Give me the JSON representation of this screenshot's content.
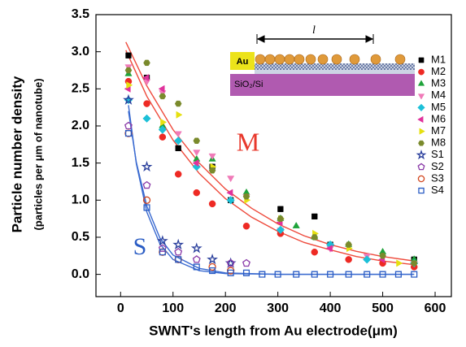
{
  "chart_data": {
    "type": "scatter",
    "ylabel": "Particle number density",
    "ylabel2": "(particles per μm of nanotube)",
    "xlabel": "SWNT's length from Au electrode(μm)",
    "xlim": [
      -47,
      631
    ],
    "ylim": [
      -0.3,
      3.5
    ],
    "xticks": [
      0,
      100,
      200,
      300,
      400,
      500,
      600
    ],
    "yticks": [
      {
        "value": 0,
        "label": "0.0"
      },
      0.5,
      {
        "value": 1,
        "label": "1.0"
      },
      1.5,
      {
        "value": 2,
        "label": "2.0"
      },
      2.5,
      {
        "value": 3,
        "label": "3.0"
      },
      3.5
    ],
    "annotations": [
      {
        "text": "M",
        "color": "#e8382c"
      },
      {
        "text": "S",
        "color": "#2a5cc4"
      }
    ],
    "inset": {
      "electrode": "Au",
      "substrate": "SiO₂/Si",
      "length": "l"
    },
    "series": [
      {
        "name": "M1",
        "color": "#000000",
        "marker": "square",
        "filled": true,
        "x": [
          15,
          50,
          110,
          175,
          210,
          305,
          370,
          400,
          560
        ],
        "values": [
          2.95,
          2.65,
          1.7,
          1.45,
          1.0,
          0.88,
          0.78,
          0.4,
          0.2
        ]
      },
      {
        "name": "M2",
        "color": "#ee2a24",
        "marker": "circle",
        "filled": true,
        "x": [
          15,
          50,
          80,
          110,
          145,
          175,
          240,
          305,
          370,
          435,
          500,
          560
        ],
        "values": [
          2.6,
          2.3,
          1.85,
          1.35,
          1.1,
          0.95,
          0.65,
          0.55,
          0.3,
          0.2,
          0.15,
          0.1
        ]
      },
      {
        "name": "M3",
        "color": "#1fa33a",
        "marker": "tri-up",
        "filled": true,
        "x": [
          15,
          80,
          145,
          175,
          240,
          305,
          335,
          370,
          435,
          500,
          560
        ],
        "values": [
          2.7,
          2.0,
          1.55,
          1.55,
          1.1,
          0.75,
          0.65,
          0.5,
          0.4,
          0.3,
          0.2
        ]
      },
      {
        "name": "M4",
        "color": "#f07ab8",
        "marker": "tri-down",
        "filled": true,
        "x": [
          15,
          50,
          80,
          110,
          145,
          175,
          210,
          240,
          305,
          400,
          470,
          560
        ],
        "values": [
          2.8,
          2.6,
          2.45,
          1.9,
          1.65,
          1.6,
          1.3,
          1.05,
          0.6,
          0.35,
          0.25,
          0.15
        ]
      },
      {
        "name": "M5",
        "color": "#1cc0d8",
        "marker": "diamond",
        "filled": true,
        "x": [
          15,
          50,
          80,
          110,
          145,
          210,
          305,
          400,
          470,
          560
        ],
        "values": [
          2.35,
          2.1,
          1.95,
          1.8,
          1.45,
          1.0,
          0.6,
          0.4,
          0.2,
          0.15
        ]
      },
      {
        "name": "M6",
        "color": "#e0329c",
        "marker": "tri-left",
        "filled": true,
        "x": [
          15,
          50,
          80,
          145,
          210,
          305,
          400,
          500
        ],
        "values": [
          2.5,
          2.65,
          2.5,
          1.5,
          1.1,
          0.7,
          0.35,
          0.2
        ]
      },
      {
        "name": "M7",
        "color": "#e6e010",
        "marker": "tri-right",
        "filled": true,
        "x": [
          15,
          80,
          110,
          175,
          240,
          305,
          370,
          435,
          530
        ],
        "values": [
          2.55,
          2.05,
          2.15,
          1.45,
          1.0,
          0.75,
          0.55,
          0.35,
          0.15
        ]
      },
      {
        "name": "M8",
        "color": "#7a8a2c",
        "marker": "hexagon",
        "filled": true,
        "x": [
          15,
          50,
          80,
          110,
          145,
          175,
          240,
          305,
          370,
          435,
          500,
          560
        ],
        "values": [
          2.75,
          2.85,
          2.4,
          2.3,
          1.8,
          1.4,
          1.05,
          0.75,
          0.5,
          0.4,
          0.25,
          0.15
        ]
      },
      {
        "name": "S1",
        "color": "#2a3f9c",
        "marker": "star",
        "filled": false,
        "x": [
          15,
          50,
          80,
          110,
          145,
          175,
          210
        ],
        "values": [
          2.35,
          1.45,
          0.45,
          0.4,
          0.35,
          0.2,
          0.15
        ]
      },
      {
        "name": "S2",
        "color": "#8a3aa8",
        "marker": "pentagon",
        "filled": false,
        "x": [
          15,
          50,
          80,
          110,
          145,
          210,
          240
        ],
        "values": [
          2.0,
          1.2,
          0.35,
          0.3,
          0.2,
          0.15,
          0.15
        ]
      },
      {
        "name": "S3",
        "color": "#d2461e",
        "marker": "circle",
        "filled": false,
        "x": [
          15,
          50,
          80,
          110,
          175,
          210
        ],
        "values": [
          1.9,
          1.0,
          0.3,
          0.2,
          0.1,
          0.05
        ]
      },
      {
        "name": "S4",
        "color": "#2a5cc4",
        "marker": "square",
        "filled": false,
        "x": [
          15,
          50,
          80,
          110,
          145,
          175,
          210,
          240,
          270,
          300,
          335,
          370,
          400,
          435,
          470,
          500,
          530,
          560
        ],
        "values": [
          1.9,
          0.9,
          0.3,
          0.2,
          0.1,
          0.05,
          0.02,
          0.02,
          0,
          0,
          0,
          0,
          0,
          0,
          0,
          0,
          0,
          0
        ]
      }
    ],
    "fits": [
      {
        "color": "#ee4a3c",
        "x": [
          10,
          50,
          100,
          150,
          200,
          250,
          300,
          350,
          400,
          450,
          500,
          560
        ],
        "values": [
          3.13,
          2.54,
          1.95,
          1.5,
          1.15,
          0.89,
          0.68,
          0.52,
          0.4,
          0.31,
          0.24,
          0.18
        ]
      },
      {
        "color": "#ee4a3c",
        "x": [
          10,
          50,
          100,
          150,
          200,
          250,
          300,
          350,
          400,
          450,
          500,
          560
        ],
        "values": [
          3.02,
          2.4,
          1.81,
          1.36,
          1.02,
          0.77,
          0.58,
          0.43,
          0.33,
          0.24,
          0.18,
          0.13
        ]
      },
      {
        "color": "#3a6ad0",
        "x": [
          15,
          30,
          50,
          75,
          100,
          150,
          200,
          300,
          560
        ],
        "values": [
          2.28,
          1.49,
          0.84,
          0.41,
          0.2,
          0.05,
          0.01,
          0,
          0
        ]
      },
      {
        "color": "#3a6ad0",
        "x": [
          15,
          30,
          50,
          75,
          100,
          150,
          200,
          300,
          560
        ],
        "values": [
          2.2,
          1.51,
          0.92,
          0.49,
          0.26,
          0.08,
          0.02,
          0,
          0
        ]
      }
    ]
  }
}
